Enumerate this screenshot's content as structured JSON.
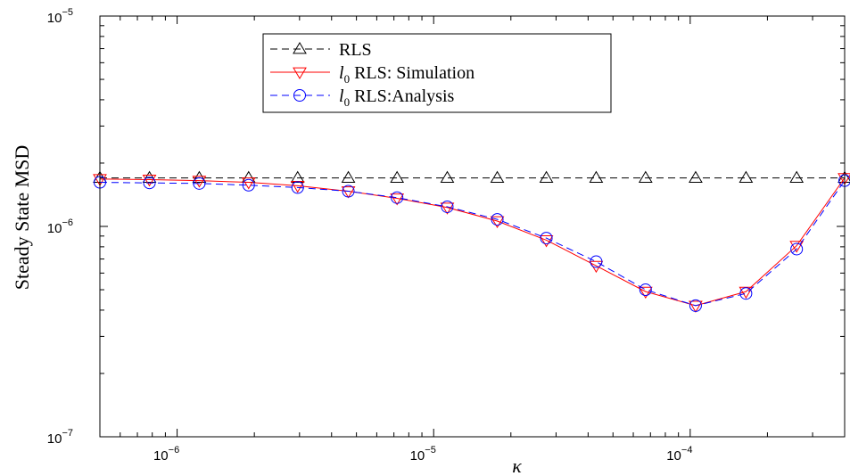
{
  "chart_data": {
    "type": "line",
    "title": "",
    "xlabel": "κ",
    "ylabel": "Steady State MSD",
    "x_scale": "log",
    "y_scale": "log",
    "xlim": [
      5e-07,
      0.0004
    ],
    "ylim": [
      1e-07,
      1e-05
    ],
    "grid": false,
    "legend_position": "top-center",
    "x_ticks": [
      {
        "value": 1e-06,
        "mantissa": "10",
        "exp": "−6"
      },
      {
        "value": 1e-05,
        "mantissa": "10",
        "exp": "−5"
      },
      {
        "value": 0.0001,
        "mantissa": "10",
        "exp": "−4"
      }
    ],
    "y_ticks": [
      {
        "value": 1e-07,
        "mantissa": "10",
        "exp": "−7"
      },
      {
        "value": 1e-06,
        "mantissa": "10",
        "exp": "−6"
      },
      {
        "value": 1e-05,
        "mantissa": "10",
        "exp": "−5"
      }
    ],
    "x": [
      5e-07,
      7.8e-07,
      1.22e-06,
      1.9e-06,
      2.95e-06,
      4.65e-06,
      7.2e-06,
      1.13e-05,
      1.77e-05,
      2.75e-05,
      4.3e-05,
      6.7e-05,
      0.000105,
      0.000165,
      0.00026,
      0.0004
    ],
    "series": [
      {
        "name": "RLS",
        "label_prefix": "",
        "label_text": "RLS",
        "color": "#000000",
        "dash": "dashed",
        "marker": "triangle-up",
        "values": [
          1.7e-06,
          1.7e-06,
          1.7e-06,
          1.7e-06,
          1.7e-06,
          1.7e-06,
          1.7e-06,
          1.7e-06,
          1.7e-06,
          1.7e-06,
          1.7e-06,
          1.7e-06,
          1.7e-06,
          1.7e-06,
          1.7e-06,
          1.7e-06
        ]
      },
      {
        "name": "l0 RLS: Simulation",
        "label_prefix": "l",
        "label_sub": "0",
        "label_text": " RLS: Simulation",
        "color": "#ff0000",
        "dash": "solid",
        "marker": "triangle-down",
        "values": [
          1.68e-06,
          1.67e-06,
          1.65e-06,
          1.62e-06,
          1.56e-06,
          1.47e-06,
          1.36e-06,
          1.23e-06,
          1.06e-06,
          8.6e-07,
          6.5e-07,
          4.9e-07,
          4.2e-07,
          4.9e-07,
          8.1e-07,
          1.7e-06
        ]
      },
      {
        "name": "l0 RLS:Analysis",
        "label_prefix": "l",
        "label_sub": "0",
        "label_text": " RLS:Analysis",
        "color": "#0000ff",
        "dash": "dashed",
        "marker": "circle",
        "values": [
          1.62e-06,
          1.61e-06,
          1.6e-06,
          1.57e-06,
          1.53e-06,
          1.47e-06,
          1.37e-06,
          1.24e-06,
          1.08e-06,
          8.8e-07,
          6.8e-07,
          5e-07,
          4.2e-07,
          4.8e-07,
          7.8e-07,
          1.65e-06
        ]
      }
    ]
  }
}
